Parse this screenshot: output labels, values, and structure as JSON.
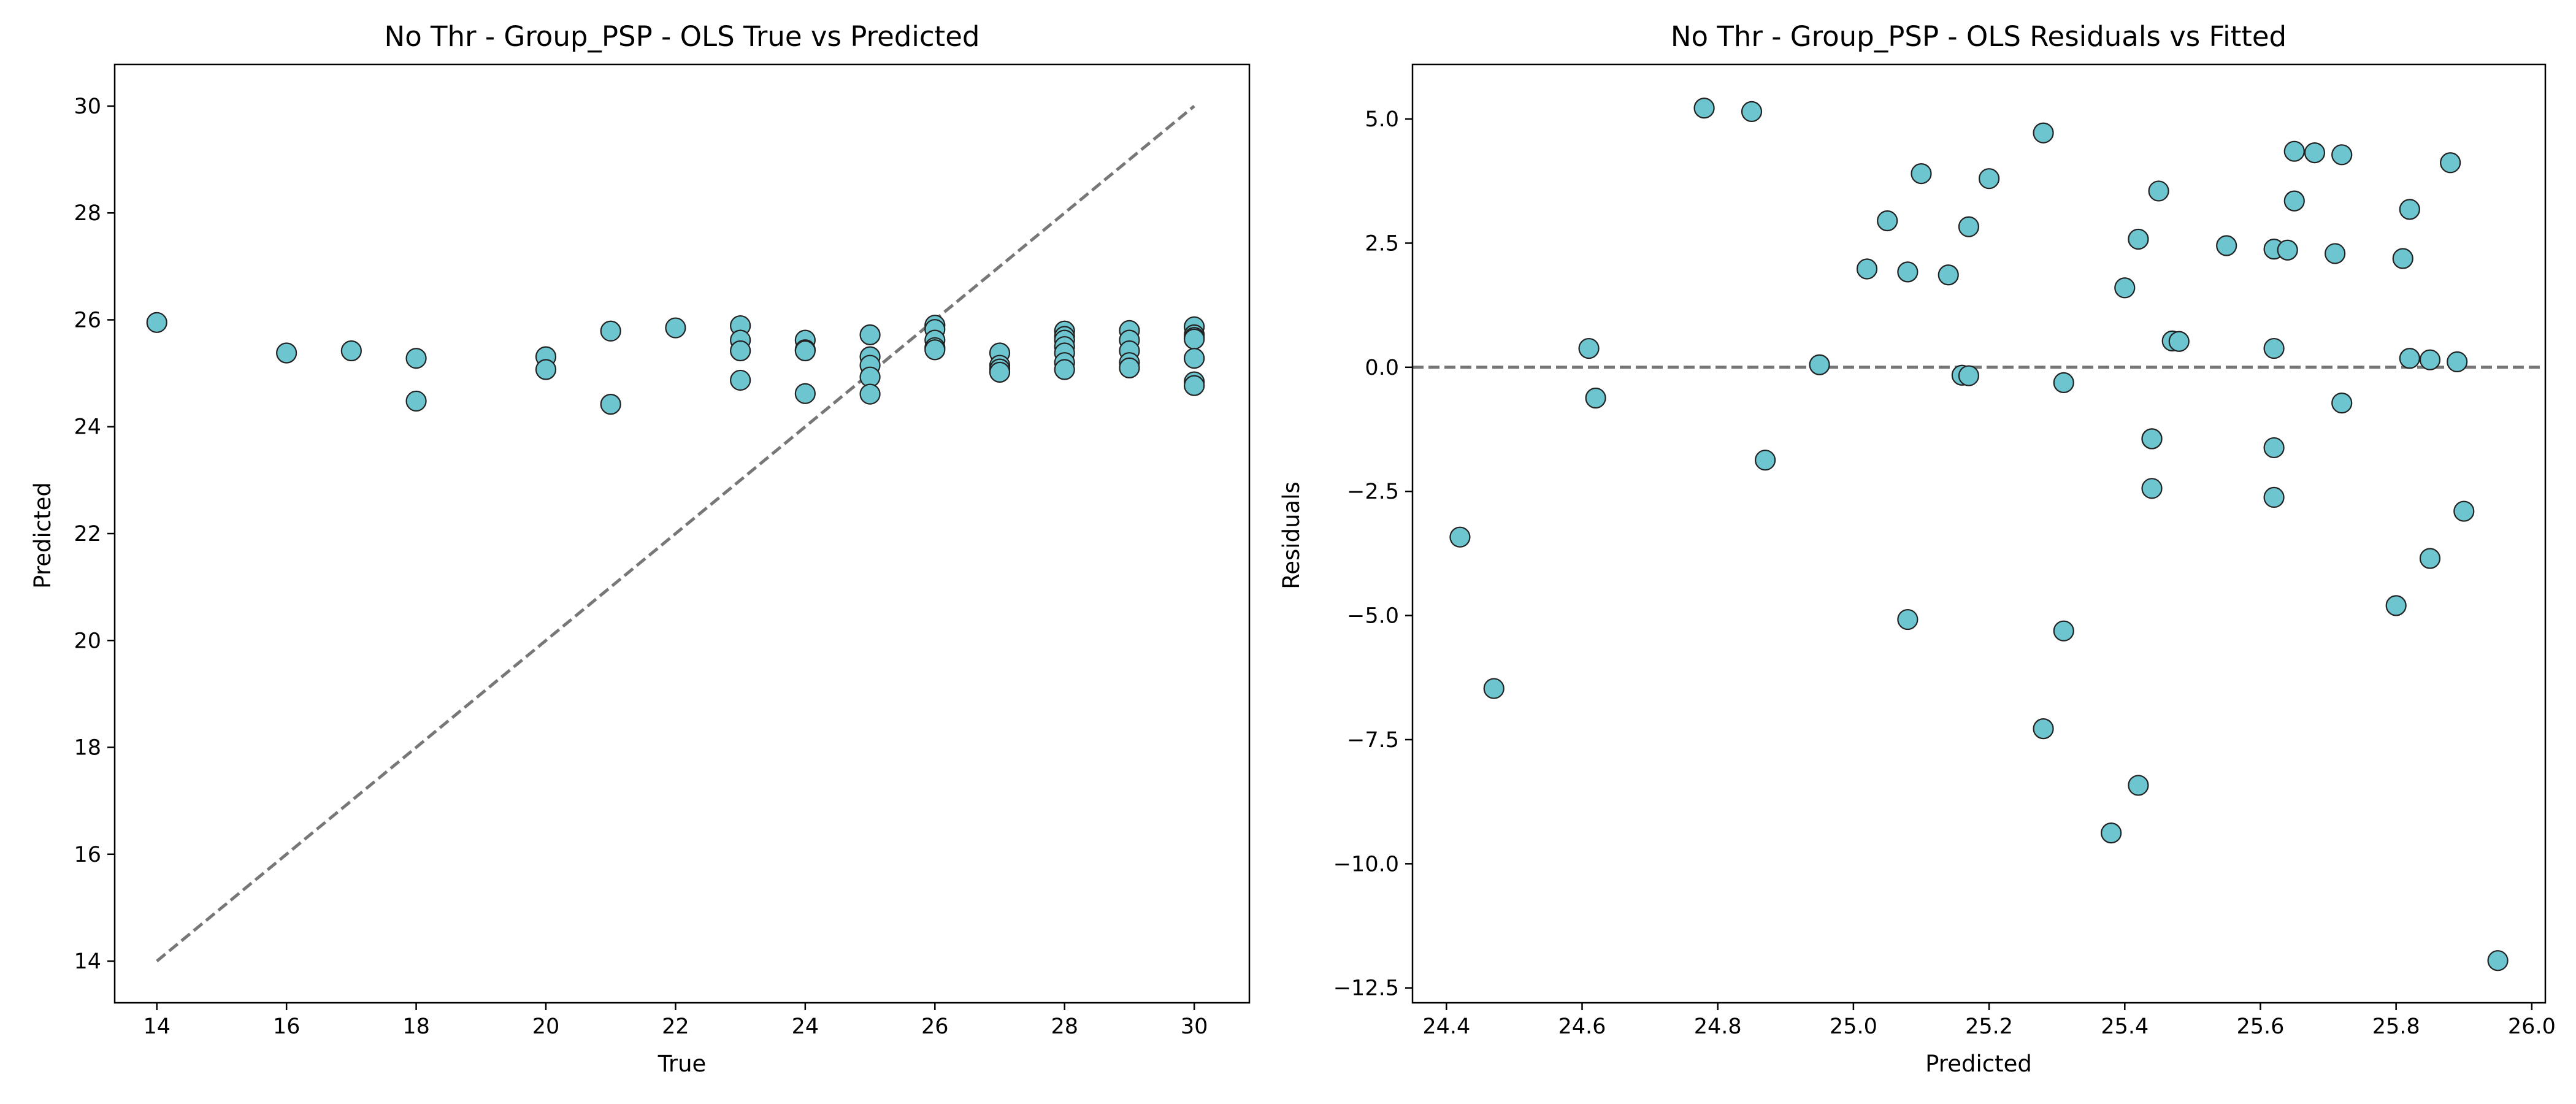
{
  "chart_data": [
    {
      "type": "scatter",
      "title": "No Thr - Group_PSP - OLS True vs Predicted",
      "xlabel": "True",
      "ylabel": "Predicted",
      "xlim": [
        13.35,
        30.85
      ],
      "ylim": [
        13.22,
        30.78
      ],
      "xticks": [
        14,
        16,
        18,
        20,
        22,
        24,
        26,
        28,
        30
      ],
      "yticks": [
        14,
        16,
        18,
        20,
        22,
        24,
        26,
        28,
        30
      ],
      "reference_line": {
        "style": "dashed",
        "color": "#777777",
        "x": [
          14,
          30
        ],
        "y": [
          14,
          30
        ]
      },
      "marker_color": "#6cc5cf",
      "marker_edge": "#222222",
      "grid": false,
      "points": [
        [
          14,
          25.95
        ],
        [
          16,
          25.38
        ],
        [
          17,
          25.42
        ],
        [
          18,
          25.28
        ],
        [
          18,
          24.48
        ],
        [
          20,
          25.31
        ],
        [
          20,
          25.07
        ],
        [
          21,
          25.79
        ],
        [
          21,
          24.42
        ],
        [
          22,
          25.85
        ],
        [
          23,
          25.89
        ],
        [
          23,
          25.62
        ],
        [
          23,
          25.42
        ],
        [
          23,
          24.87
        ],
        [
          24,
          25.62
        ],
        [
          24,
          25.44
        ],
        [
          24,
          25.42
        ],
        [
          24,
          24.62
        ],
        [
          25,
          25.72
        ],
        [
          25,
          25.31
        ],
        [
          25,
          25.15
        ],
        [
          25,
          24.93
        ],
        [
          25,
          24.61
        ],
        [
          26,
          25.9
        ],
        [
          26,
          25.82
        ],
        [
          26,
          25.62
        ],
        [
          26,
          25.48
        ],
        [
          26,
          25.44
        ],
        [
          27,
          25.38
        ],
        [
          27,
          25.15
        ],
        [
          27,
          25.08
        ],
        [
          27,
          25.02
        ],
        [
          28,
          25.79
        ],
        [
          28,
          25.69
        ],
        [
          28,
          25.62
        ],
        [
          28,
          25.5
        ],
        [
          28,
          25.38
        ],
        [
          28,
          25.2
        ],
        [
          28,
          25.07
        ],
        [
          29,
          25.8
        ],
        [
          29,
          25.62
        ],
        [
          29,
          25.42
        ],
        [
          29,
          25.2
        ],
        [
          29,
          25.1
        ],
        [
          30,
          25.87
        ],
        [
          30,
          25.72
        ],
        [
          30,
          25.67
        ],
        [
          30,
          25.64
        ],
        [
          30,
          25.28
        ],
        [
          30,
          24.84
        ],
        [
          30,
          24.77
        ]
      ]
    },
    {
      "type": "scatter",
      "title": "No Thr - Group_PSP - OLS Residuals vs Fitted",
      "xlabel": "Predicted",
      "ylabel": "Residuals",
      "xlim": [
        24.35,
        26.02
      ],
      "ylim": [
        -12.8,
        6.1
      ],
      "xticks": [
        24.4,
        24.6,
        24.8,
        25.0,
        25.2,
        25.4,
        25.6,
        25.8,
        26.0
      ],
      "xtick_labels": [
        "24.4",
        "24.6",
        "24.8",
        "25.0",
        "25.2",
        "25.4",
        "25.6",
        "25.8",
        "26.0"
      ],
      "yticks": [
        5.0,
        2.5,
        0.0,
        -2.5,
        -5.0,
        -7.5,
        -10.0,
        -12.5
      ],
      "ytick_labels": [
        "5.0",
        "2.5",
        "0.0",
        "−2.5",
        "−5.0",
        "−7.5",
        "−10.0",
        "−12.5"
      ],
      "reference_line": {
        "style": "dashed",
        "color": "#777777",
        "y": 0
      },
      "marker_color": "#6cc5cf",
      "marker_edge": "#222222",
      "grid": false,
      "points": [
        [
          24.42,
          -3.42
        ],
        [
          24.47,
          -6.47
        ],
        [
          24.61,
          0.38
        ],
        [
          24.62,
          -0.62
        ],
        [
          24.78,
          5.22
        ],
        [
          24.85,
          5.15
        ],
        [
          24.87,
          -1.87
        ],
        [
          24.95,
          0.05
        ],
        [
          25.02,
          1.98
        ],
        [
          25.05,
          2.95
        ],
        [
          25.08,
          -5.08
        ],
        [
          25.08,
          1.92
        ],
        [
          25.1,
          3.9
        ],
        [
          25.14,
          1.86
        ],
        [
          25.16,
          -0.16
        ],
        [
          25.17,
          -0.17
        ],
        [
          25.17,
          2.83
        ],
        [
          25.2,
          3.8
        ],
        [
          25.28,
          -7.28
        ],
        [
          25.28,
          4.72
        ],
        [
          25.31,
          -5.31
        ],
        [
          25.31,
          -0.31
        ],
        [
          25.38,
          -9.38
        ],
        [
          25.4,
          1.6
        ],
        [
          25.42,
          -8.42
        ],
        [
          25.42,
          2.58
        ],
        [
          25.42,
          2.58
        ],
        [
          25.44,
          -1.44
        ],
        [
          25.44,
          -1.44
        ],
        [
          25.44,
          -2.44
        ],
        [
          25.45,
          3.55
        ],
        [
          25.47,
          0.53
        ],
        [
          25.48,
          0.52
        ],
        [
          25.55,
          2.45
        ],
        [
          25.62,
          0.38
        ],
        [
          25.62,
          -1.62
        ],
        [
          25.62,
          -2.62
        ],
        [
          25.62,
          2.38
        ],
        [
          25.64,
          2.36
        ],
        [
          25.65,
          3.35
        ],
        [
          25.65,
          4.35
        ],
        [
          25.68,
          4.32
        ],
        [
          25.71,
          2.29
        ],
        [
          25.72,
          4.28
        ],
        [
          25.72,
          -0.72
        ],
        [
          25.8,
          -4.8
        ],
        [
          25.81,
          2.19
        ],
        [
          25.82,
          3.18
        ],
        [
          25.82,
          0.18
        ],
        [
          25.85,
          -3.85
        ],
        [
          25.85,
          0.15
        ],
        [
          25.88,
          4.12
        ],
        [
          25.89,
          0.11
        ],
        [
          25.9,
          -2.9
        ],
        [
          25.95,
          -11.95
        ]
      ]
    }
  ]
}
